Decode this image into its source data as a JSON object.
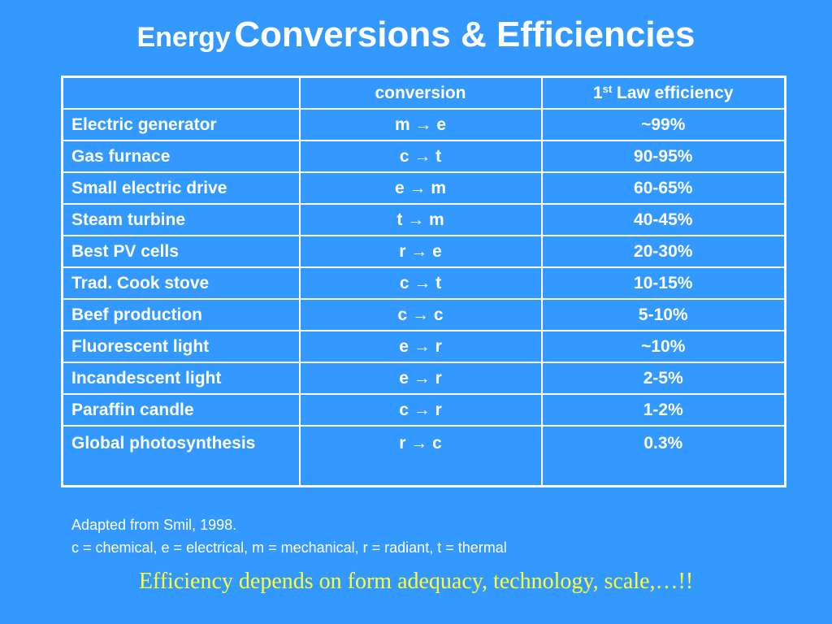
{
  "title": {
    "small": "Energy",
    "large": "Conversions & Efficiencies"
  },
  "table": {
    "headers": {
      "name": "",
      "conversion": "conversion",
      "efficiency_num": "1",
      "efficiency_sup": "st",
      "efficiency_rest": " Law efficiency"
    },
    "rows": [
      {
        "name": "Electric generator",
        "conversion": "m → e",
        "efficiency": "~99%"
      },
      {
        "name": "Gas furnace",
        "conversion": "c → t",
        "efficiency": "90-95%"
      },
      {
        "name": "Small electric drive",
        "conversion": "e → m",
        "efficiency": "60-65%"
      },
      {
        "name": "Steam turbine",
        "conversion": "t → m",
        "efficiency": "40-45%"
      },
      {
        "name": "Best PV cells",
        "conversion": "r → e",
        "efficiency": "20-30%"
      },
      {
        "name": "Trad. Cook stove",
        "conversion": "c → t",
        "efficiency": "10-15%"
      },
      {
        "name": "Beef production",
        "conversion": "c → c",
        "efficiency": "5-10%"
      },
      {
        "name": "Fluorescent light",
        "conversion": "e → r",
        "efficiency": "~10%"
      },
      {
        "name": "Incandescent light",
        "conversion": "e → r",
        "efficiency": "2-5%"
      },
      {
        "name": "Paraffin candle",
        "conversion": "c → r",
        "efficiency": "1-2%"
      },
      {
        "name": "Global photosynthesis",
        "conversion": "r → c",
        "efficiency": "0.3%"
      }
    ]
  },
  "notes": {
    "source": "Adapted from Smil, 1998.",
    "legend": "c = chemical, e = electrical, m = mechanical, r = radiant, t = thermal"
  },
  "tagline": "Efficiency depends on form adequacy, technology, scale,…!!",
  "colors": {
    "background": "#3399ff",
    "text": "#ffffff",
    "tagline": "#ffff33"
  }
}
